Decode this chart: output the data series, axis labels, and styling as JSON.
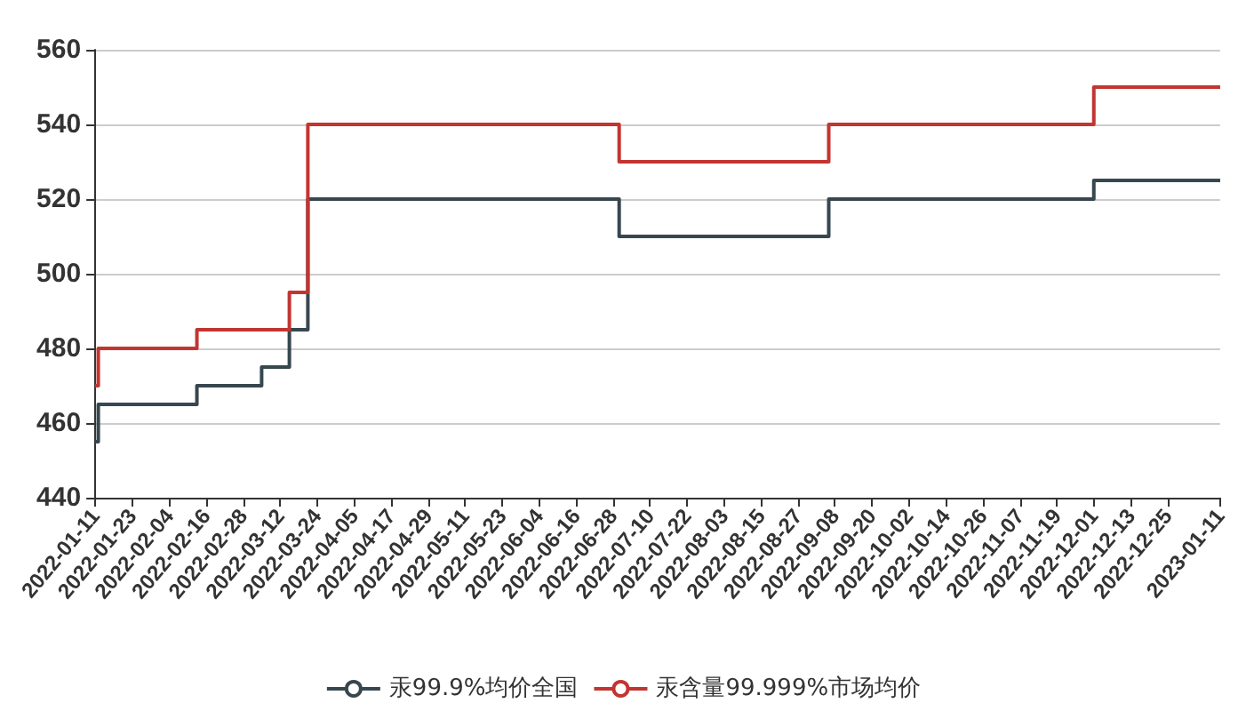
{
  "chart_data": {
    "type": "step",
    "xlim": [
      "2022-01-11",
      "2023-01-11"
    ],
    "xticks": [
      "2022-01-11",
      "2022-01-23",
      "2022-02-04",
      "2022-02-16",
      "2022-02-28",
      "2022-03-12",
      "2022-03-24",
      "2022-04-05",
      "2022-04-17",
      "2022-04-29",
      "2022-05-11",
      "2022-05-23",
      "2022-06-04",
      "2022-06-16",
      "2022-06-28",
      "2022-07-10",
      "2022-07-22",
      "2022-08-03",
      "2022-08-15",
      "2022-08-27",
      "2022-09-08",
      "2022-09-20",
      "2022-10-02",
      "2022-10-14",
      "2022-10-26",
      "2022-11-07",
      "2022-11-19",
      "2022-12-01",
      "2022-12-13",
      "2022-12-25",
      "2023-01-11"
    ],
    "ylim": [
      440,
      560
    ],
    "yticks": [
      440,
      460,
      480,
      500,
      520,
      540,
      560
    ],
    "grid": "y",
    "legend": "bottom",
    "marker": "none",
    "line_style": "solid",
    "series": [
      {
        "name": "汞99.9%均价全国",
        "color": "#37474f",
        "x": [
          "2022-01-11",
          "2022-01-12",
          "2022-02-13",
          "2022-03-06",
          "2022-03-15",
          "2022-03-21",
          "2022-06-30",
          "2022-09-06",
          "2022-12-01",
          "2023-01-11"
        ],
        "values": [
          455,
          465,
          470,
          475,
          485,
          520,
          510,
          520,
          525,
          525
        ]
      },
      {
        "name": "汞含量99.999%市场均价",
        "color": "#c23531",
        "x": [
          "2022-01-11",
          "2022-01-12",
          "2022-02-13",
          "2022-03-15",
          "2022-03-21",
          "2022-06-30",
          "2022-09-06",
          "2022-12-01",
          "2023-01-11"
        ],
        "values": [
          470,
          480,
          485,
          495,
          540,
          530,
          540,
          550,
          550
        ]
      }
    ]
  }
}
